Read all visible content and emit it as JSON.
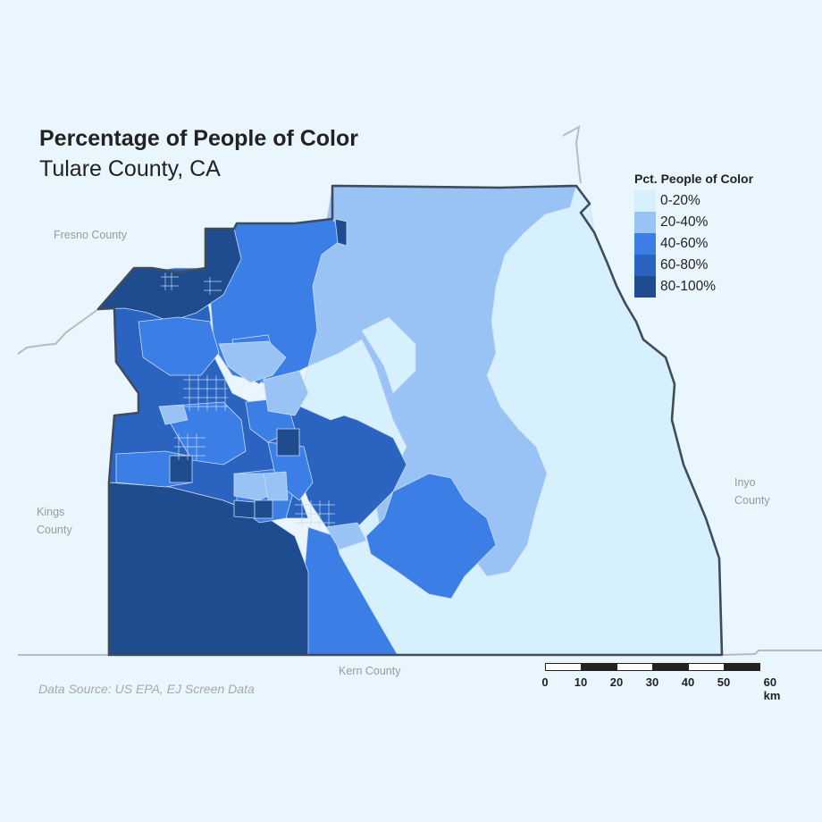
{
  "title": "Percentage of People of Color",
  "subtitle": "Tulare County, CA",
  "neighbors": {
    "fresno": "Fresno County",
    "kings_line1": "Kings",
    "kings_line2": "County",
    "kern": "Kern County",
    "inyo_line1": "Inyo",
    "inyo_line2": "County"
  },
  "legend": {
    "title": "Pct. People of Color",
    "items": [
      {
        "label": "0-20%",
        "color": "#d6f0fd"
      },
      {
        "label": "20-40%",
        "color": "#9ac3f5"
      },
      {
        "label": "40-60%",
        "color": "#3a7ee6"
      },
      {
        "label": "60-80%",
        "color": "#2b63c0"
      },
      {
        "label": "80-100%",
        "color": "#1f4b8f"
      }
    ]
  },
  "scale": {
    "ticks": [
      "0",
      "10",
      "20",
      "30",
      "40",
      "50",
      "60 km"
    ]
  },
  "source": "Data Source: US EPA, EJ Screen Data",
  "colors": {
    "background": "#eaf6fd",
    "county_outline": "#3f4c5a",
    "neighbor_outline": "#b6bcc2"
  }
}
